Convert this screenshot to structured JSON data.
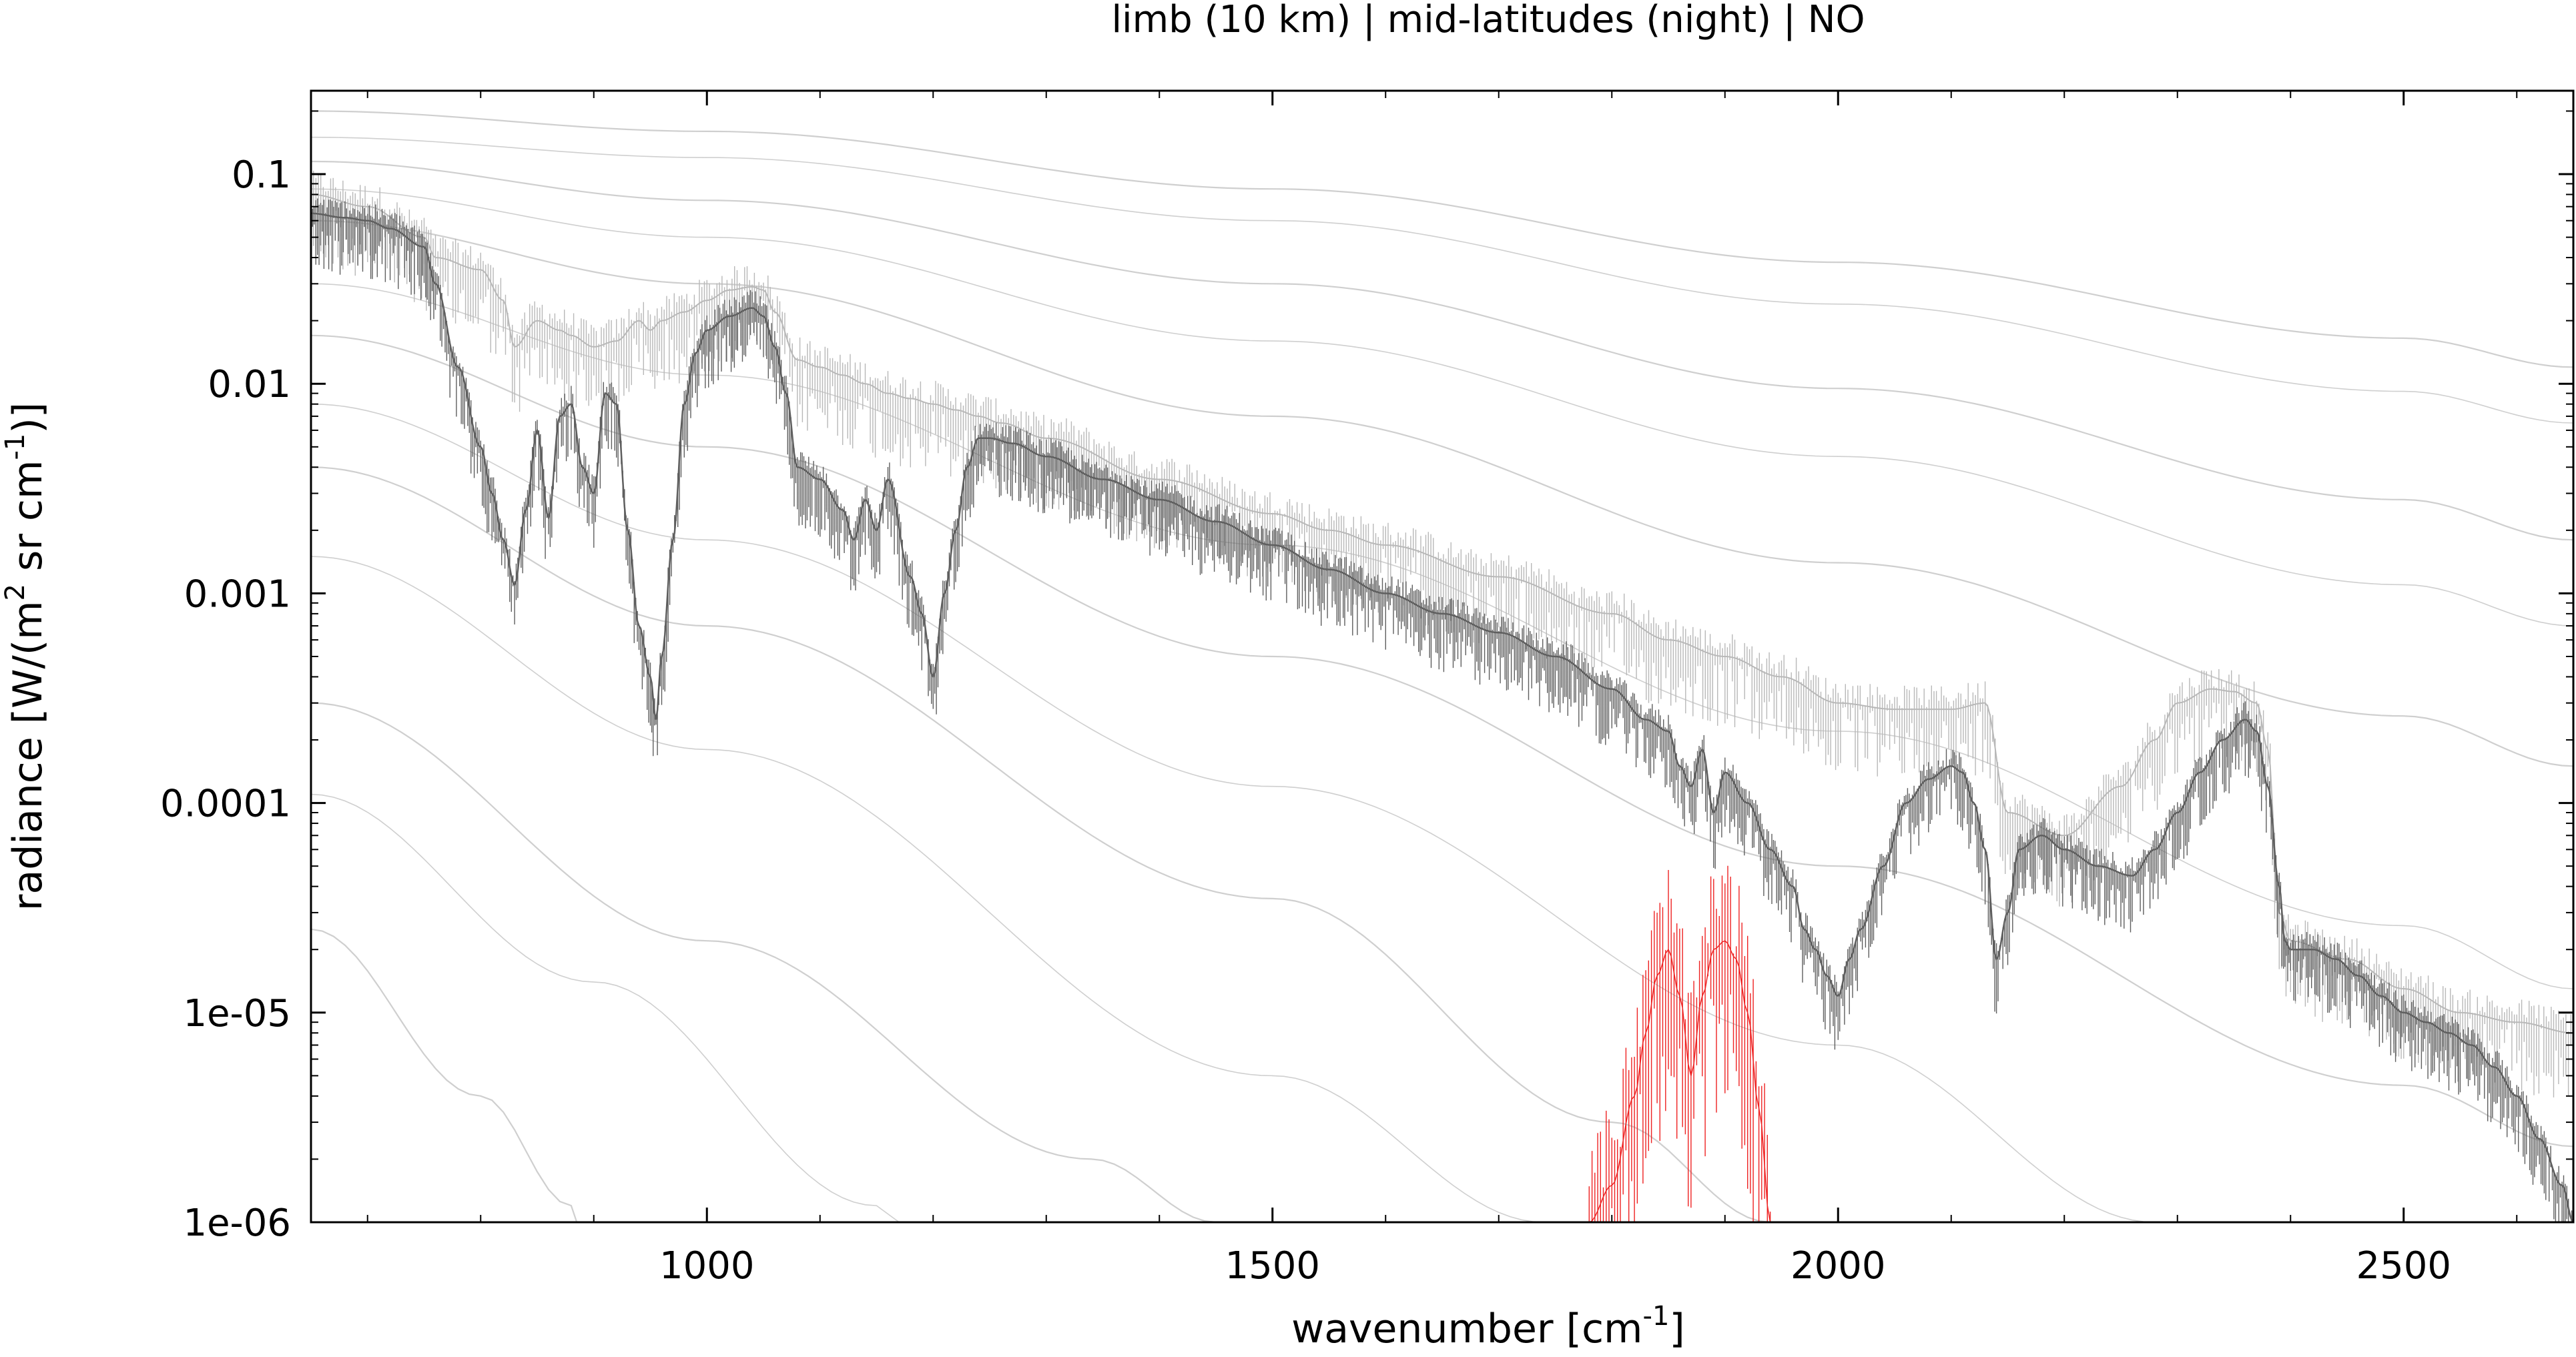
{
  "chart_data": {
    "type": "line",
    "title": "limb (10 km) | mid-latitudes (night) | NO",
    "xlabel": "wavenumber [cm-1]",
    "ylabel": "radiance [W/(m2 sr cm-1)]",
    "xlabel_parts": {
      "main": "wavenumber [cm",
      "sup": "-1",
      "end": "]"
    },
    "ylabel_parts": {
      "a": "radiance [W/(m",
      "sup1": "2",
      "b": " sr cm",
      "sup2": "-1",
      "c": ")]"
    },
    "x_scale": "linear",
    "y_scale": "log",
    "xlim": [
      650,
      2650
    ],
    "ylim": [
      1e-06,
      0.25
    ],
    "grid": false,
    "legend": "none",
    "x_ticks": [
      {
        "value": 1000,
        "label": "1000"
      },
      {
        "value": 1500,
        "label": "1500"
      },
      {
        "value": 2000,
        "label": "2000"
      },
      {
        "value": 2500,
        "label": "2500"
      }
    ],
    "y_ticks": [
      {
        "value": 0.1,
        "label": "0.1"
      },
      {
        "value": 0.01,
        "label": "0.01"
      },
      {
        "value": 0.001,
        "label": "0.001"
      },
      {
        "value": 0.0001,
        "label": "0.0001"
      },
      {
        "value": 1e-05,
        "label": "1e-05"
      },
      {
        "value": 1e-06,
        "label": "1e-06"
      }
    ],
    "colors": {
      "total": "#5f5f5f",
      "envelope": "#b8b8b8",
      "target": "#ee2222",
      "reference": "#cfcfcf",
      "axis": "#000000"
    },
    "reference_curves": [
      {
        "x": [
          650,
          1000,
          1500,
          2000,
          2500,
          2650
        ],
        "y": [
          0.2,
          0.16,
          0.085,
          0.038,
          0.0165,
          0.012
        ]
      },
      {
        "x": [
          650,
          1000,
          1500,
          2000,
          2500,
          2650
        ],
        "y": [
          0.15,
          0.12,
          0.06,
          0.024,
          0.0092,
          0.0065
        ]
      },
      {
        "x": [
          650,
          1000,
          1500,
          2000,
          2500,
          2650
        ],
        "y": [
          0.115,
          0.075,
          0.03,
          0.0095,
          0.0028,
          0.0018
        ]
      },
      {
        "x": [
          650,
          1000,
          1500,
          2000,
          2500,
          2650
        ],
        "y": [
          0.085,
          0.05,
          0.016,
          0.0045,
          0.0011,
          0.0007
        ]
      },
      {
        "x": [
          650,
          1000,
          1500,
          2000,
          2500,
          2650
        ],
        "y": [
          0.06,
          0.03,
          0.007,
          0.0014,
          0.00026,
          0.00015
        ]
      },
      {
        "x": [
          650,
          1000,
          1500,
          2000,
          2500,
          2650
        ],
        "y": [
          0.03,
          0.011,
          0.0017,
          0.00022,
          2.6e-05,
          1.3e-05
        ]
      },
      {
        "x": [
          650,
          1000,
          1500,
          2000,
          2500,
          2650
        ],
        "y": [
          0.017,
          0.005,
          0.0005,
          5e-05,
          4.5e-06,
          2.3e-06
        ]
      },
      {
        "x": [
          650,
          1000,
          1500,
          2000,
          2280
        ],
        "y": [
          0.008,
          0.0018,
          0.00012,
          7e-06,
          1e-06
        ]
      },
      {
        "x": [
          650,
          1000,
          1500,
          1800,
          1940
        ],
        "y": [
          0.004,
          0.0007,
          3.5e-05,
          3e-06,
          1e-06
        ]
      },
      {
        "x": [
          650,
          1000,
          1500,
          1740
        ],
        "y": [
          0.0015,
          0.00018,
          5e-06,
          1e-06
        ]
      },
      {
        "x": [
          650,
          1000,
          1340,
          1450
        ],
        "y": [
          0.0003,
          2.2e-05,
          2e-06,
          1e-06
        ]
      },
      {
        "x": [
          650,
          900,
          1150,
          1170
        ],
        "y": [
          0.00011,
          1.4e-05,
          1.2e-06,
          1e-06
        ]
      },
      {
        "x": [
          650,
          800,
          880,
          885
        ],
        "y": [
          2.5e-05,
          4e-06,
          1.2e-06,
          1e-06
        ]
      }
    ],
    "series": [
      {
        "name": "",
        "role": "upper-envelope",
        "x": [
          650,
          700,
          750,
          760,
          800,
          820,
          830,
          850,
          870,
          880,
          900,
          920,
          940,
          950,
          960,
          980,
          1000,
          1020,
          1040,
          1050,
          1060,
          1080,
          1100,
          1120,
          1140,
          1160,
          1180,
          1200,
          1220,
          1240,
          1260,
          1300,
          1400,
          1500,
          1550,
          1600,
          1700,
          1800,
          1850,
          1900,
          1950,
          2000,
          2050,
          2100,
          2130,
          2150,
          2200,
          2250,
          2280,
          2300,
          2330,
          2350,
          2370,
          2380,
          2390,
          2400,
          2450,
          2500,
          2550,
          2600,
          2650
        ],
        "y": [
          0.08,
          0.07,
          0.05,
          0.04,
          0.035,
          0.025,
          0.015,
          0.02,
          0.018,
          0.017,
          0.015,
          0.016,
          0.02,
          0.018,
          0.02,
          0.022,
          0.025,
          0.028,
          0.029,
          0.028,
          0.022,
          0.013,
          0.012,
          0.011,
          0.01,
          0.009,
          0.0085,
          0.008,
          0.0075,
          0.007,
          0.0065,
          0.0055,
          0.0035,
          0.0024,
          0.002,
          0.0017,
          0.0012,
          0.0008,
          0.0006,
          0.0005,
          0.0004,
          0.0003,
          0.00028,
          0.00028,
          0.0003,
          9e-05,
          7e-05,
          0.00012,
          0.0002,
          0.0003,
          0.00035,
          0.00034,
          0.0003,
          0.00018,
          3e-05,
          2.2e-05,
          1.8e-05,
          1.3e-05,
          1e-05,
          9e-06,
          8e-06
        ]
      },
      {
        "name": "",
        "role": "total-radiance",
        "x": [
          650,
          680,
          700,
          720,
          750,
          760,
          780,
          800,
          810,
          820,
          830,
          840,
          850,
          860,
          870,
          880,
          890,
          900,
          910,
          920,
          930,
          940,
          950,
          955,
          960,
          970,
          980,
          990,
          1000,
          1020,
          1040,
          1050,
          1060,
          1070,
          1080,
          1100,
          1120,
          1130,
          1140,
          1150,
          1160,
          1180,
          1190,
          1200,
          1210,
          1220,
          1230,
          1240,
          1250,
          1270,
          1300,
          1350,
          1400,
          1450,
          1500,
          1550,
          1600,
          1650,
          1700,
          1750,
          1800,
          1830,
          1850,
          1860,
          1870,
          1880,
          1890,
          1900,
          1920,
          1940,
          1960,
          1970,
          1980,
          1990,
          2000,
          2010,
          2020,
          2040,
          2060,
          2080,
          2100,
          2110,
          2120,
          2130,
          2140,
          2150,
          2160,
          2180,
          2200,
          2230,
          2260,
          2280,
          2300,
          2320,
          2340,
          2360,
          2370,
          2380,
          2390,
          2395,
          2400,
          2420,
          2440,
          2460,
          2480,
          2500,
          2520,
          2540,
          2560,
          2580,
          2600,
          2620,
          2640,
          2650
        ],
        "y": [
          0.065,
          0.062,
          0.06,
          0.055,
          0.045,
          0.03,
          0.012,
          0.005,
          0.003,
          0.0018,
          0.0011,
          0.0025,
          0.006,
          0.0023,
          0.007,
          0.008,
          0.004,
          0.003,
          0.009,
          0.008,
          0.002,
          0.0007,
          0.0004,
          0.00025,
          0.0005,
          0.0018,
          0.008,
          0.014,
          0.018,
          0.021,
          0.023,
          0.021,
          0.015,
          0.009,
          0.004,
          0.0035,
          0.0025,
          0.0018,
          0.0028,
          0.002,
          0.0035,
          0.0012,
          0.0008,
          0.0004,
          0.001,
          0.002,
          0.004,
          0.0055,
          0.0055,
          0.0052,
          0.0045,
          0.0035,
          0.0028,
          0.0022,
          0.0017,
          0.0013,
          0.001,
          0.0008,
          0.00065,
          0.0005,
          0.00035,
          0.00025,
          0.00022,
          0.00015,
          0.00012,
          0.00018,
          9e-05,
          0.00014,
          0.0001,
          6e-05,
          4e-05,
          2.5e-05,
          2e-05,
          1.5e-05,
          1.2e-05,
          1.8e-05,
          2.5e-05,
          5e-05,
          0.0001,
          0.00013,
          0.00015,
          0.00014,
          0.0001,
          6e-05,
          1.8e-05,
          3e-05,
          6e-05,
          7e-05,
          6e-05,
          5e-05,
          4.5e-05,
          6e-05,
          9e-05,
          0.00014,
          0.0002,
          0.00025,
          0.00022,
          0.00012,
          4e-05,
          2.2e-05,
          2e-05,
          2e-05,
          1.8e-05,
          1.5e-05,
          1.2e-05,
          1e-05,
          9e-06,
          8e-06,
          7e-06,
          5.5e-06,
          4e-06,
          2.5e-06,
          1.5e-06,
          1e-06
        ]
      },
      {
        "name": "",
        "role": "target-gas",
        "x": [
          1780,
          1800,
          1820,
          1830,
          1840,
          1850,
          1860,
          1870,
          1880,
          1890,
          1900,
          1910,
          1920,
          1930,
          1940
        ],
        "y": [
          1e-06,
          1.5e-06,
          4e-06,
          8e-06,
          1.5e-05,
          2e-05,
          1.2e-05,
          5e-06,
          1.2e-05,
          2e-05,
          2.2e-05,
          1.8e-05,
          1e-05,
          3.5e-06,
          1e-06
        ]
      }
    ]
  }
}
